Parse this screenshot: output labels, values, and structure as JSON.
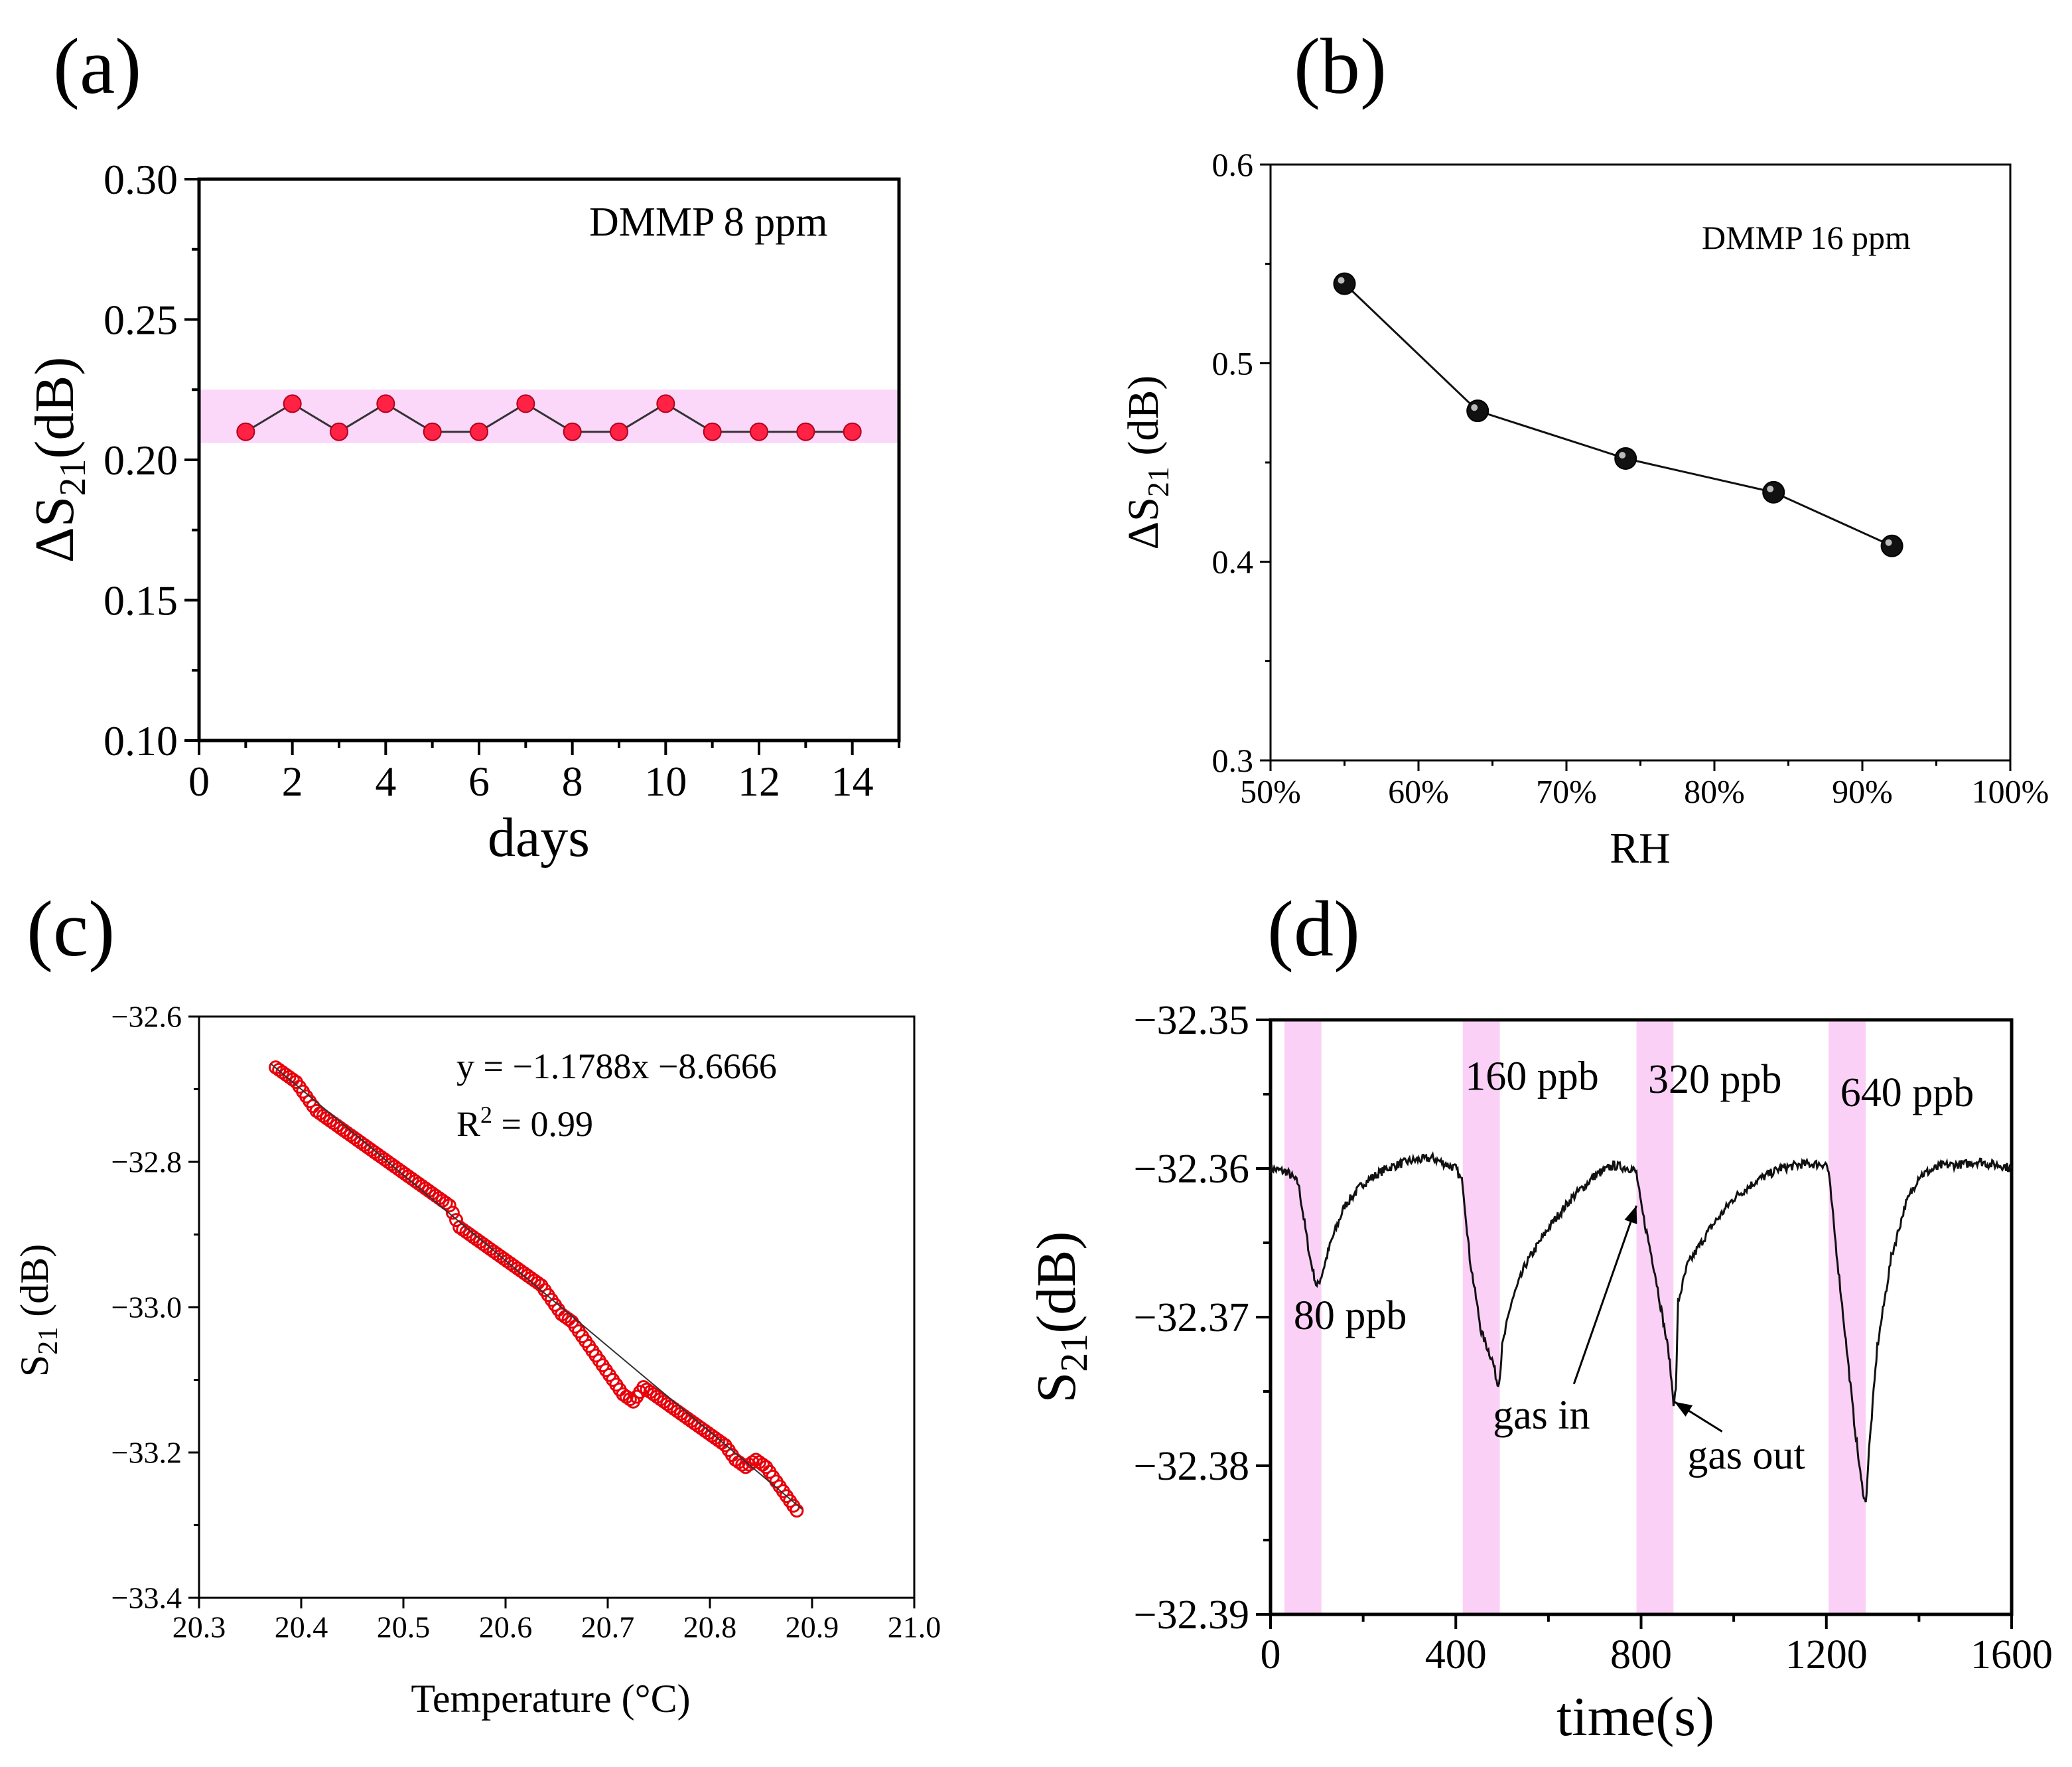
{
  "colors": {
    "panel_a_band": "#fbd7fa",
    "panel_a_marker": "#ff2244",
    "panel_b_marker": "#111111",
    "panel_c_marker": "#e8000b",
    "panel_d_band": "#fbd0f7",
    "panel_d_line": "#111111"
  },
  "chart_data": [
    {
      "panel": "(a)",
      "type": "line",
      "xlabel": "days",
      "ylabel_main": "ΔS",
      "ylabel_sub": "21",
      "ylabel_tail": "(dB)",
      "annotation": "DMMP 8 ppm",
      "xlim": [
        0,
        15
      ],
      "ylim": [
        0.1,
        0.3
      ],
      "x_ticks": [
        0,
        2,
        4,
        6,
        8,
        10,
        12,
        14
      ],
      "x_tick_labels": [
        "0",
        "2",
        "4",
        "6",
        "8",
        "10",
        "12",
        "14"
      ],
      "y_ticks": [
        0.1,
        0.15,
        0.2,
        0.25,
        0.3
      ],
      "y_tick_labels": [
        "0.10",
        "0.15",
        "0.20",
        "0.25",
        "0.30"
      ],
      "band_y": [
        0.206,
        0.225
      ],
      "x": [
        1,
        2,
        3,
        4,
        5,
        6,
        7,
        8,
        9,
        10,
        11,
        12,
        13,
        14
      ],
      "y": [
        0.21,
        0.22,
        0.21,
        0.22,
        0.21,
        0.21,
        0.22,
        0.21,
        0.21,
        0.22,
        0.21,
        0.21,
        0.21,
        0.21
      ]
    },
    {
      "panel": "(b)",
      "type": "line",
      "xlabel": "RH",
      "ylabel_main": "ΔS",
      "ylabel_sub": "21",
      "ylabel_tail": " (dB)",
      "annotation": "DMMP 16 ppm",
      "xlim": [
        50,
        100
      ],
      "ylim": [
        0.3,
        0.6
      ],
      "x_ticks": [
        50,
        60,
        70,
        80,
        90,
        100
      ],
      "x_tick_labels": [
        "50%",
        "60%",
        "70%",
        "80%",
        "90%",
        "100%"
      ],
      "y_ticks": [
        0.3,
        0.4,
        0.5,
        0.6
      ],
      "y_tick_labels": [
        "0.3",
        "0.4",
        "0.5",
        "0.6"
      ],
      "x": [
        55,
        64,
        74,
        84,
        92
      ],
      "y": [
        0.54,
        0.476,
        0.452,
        0.435,
        0.408
      ]
    },
    {
      "panel": "(c)",
      "type": "scatter",
      "xlabel": "Temperature (°C)",
      "ylabel_main": "S",
      "ylabel_sub": "21",
      "ylabel_tail": " (dB)",
      "equation": "y = −1.1788x −8.6666",
      "r2_prefix": "R",
      "r2_sup": "2",
      "r2_suffix": " = 0.99",
      "xlim": [
        20.3,
        21.0
      ],
      "ylim": [
        -33.4,
        -32.6
      ],
      "x_ticks": [
        20.3,
        20.4,
        20.5,
        20.6,
        20.7,
        20.8,
        20.9,
        21.0
      ],
      "x_tick_labels": [
        "20.3",
        "20.4",
        "20.5",
        "20.6",
        "20.7",
        "20.8",
        "20.9",
        "21.0"
      ],
      "y_ticks": [
        -33.4,
        -33.2,
        -33.0,
        -32.8,
        -32.6
      ],
      "y_tick_labels": [
        "−33.4",
        "−33.2",
        "−33.0",
        "−32.8",
        "−32.6"
      ],
      "fit_x": [
        20.37,
        20.89
      ],
      "fit_y": [
        -32.6647,
        -33.2777
      ],
      "x": [
        20.375,
        20.385,
        20.395,
        20.405,
        20.415,
        20.425,
        20.435,
        20.445,
        20.455,
        20.465,
        20.475,
        20.485,
        20.495,
        20.505,
        20.515,
        20.525,
        20.535,
        20.545,
        20.555,
        20.565,
        20.575,
        20.585,
        20.595,
        20.605,
        20.615,
        20.625,
        20.635,
        20.645,
        20.655,
        20.665,
        20.675,
        20.685,
        20.695,
        20.705,
        20.715,
        20.725,
        20.735,
        20.745,
        20.755,
        20.765,
        20.775,
        20.785,
        20.795,
        20.805,
        20.815,
        20.825,
        20.835,
        20.845,
        20.855,
        20.865,
        20.875,
        20.885
      ],
      "y": [
        -32.67,
        -32.68,
        -32.69,
        -32.71,
        -32.73,
        -32.74,
        -32.75,
        -32.76,
        -32.77,
        -32.78,
        -32.79,
        -32.8,
        -32.81,
        -32.82,
        -32.83,
        -32.84,
        -32.85,
        -32.86,
        -32.89,
        -32.9,
        -32.91,
        -32.92,
        -32.93,
        -32.94,
        -32.95,
        -32.96,
        -32.97,
        -32.99,
        -33.01,
        -33.02,
        -33.04,
        -33.06,
        -33.08,
        -33.1,
        -33.12,
        -33.13,
        -33.11,
        -33.12,
        -33.13,
        -33.14,
        -33.15,
        -33.16,
        -33.17,
        -33.18,
        -33.19,
        -33.21,
        -33.22,
        -33.21,
        -33.22,
        -33.24,
        -33.26,
        -33.28
      ]
    },
    {
      "panel": "(d)",
      "type": "line",
      "xlabel": "time(s)",
      "ylabel_main": "S",
      "ylabel_sub": "21",
      "ylabel_tail": "(dB)",
      "xlim": [
        0,
        1600
      ],
      "ylim": [
        -32.39,
        -32.35
      ],
      "x_ticks": [
        0,
        400,
        800,
        1200,
        1600
      ],
      "x_tick_labels": [
        "0",
        "400",
        "800",
        "1200",
        "1600"
      ],
      "y_ticks": [
        -32.39,
        -32.38,
        -32.37,
        -32.36,
        -32.35
      ],
      "y_tick_labels": [
        "−32.39",
        "−32.38",
        "−32.37",
        "−32.36",
        "−32.35"
      ],
      "bands": [
        [
          30,
          110
        ],
        [
          415,
          495
        ],
        [
          790,
          870
        ],
        [
          1205,
          1285
        ]
      ],
      "concentration_labels": [
        {
          "text": "80 ppb",
          "x": 50,
          "y": -32.3708
        },
        {
          "text": "160 ppb",
          "x": 420,
          "y": -32.3547
        },
        {
          "text": "320 ppb",
          "x": 815,
          "y": -32.3549
        },
        {
          "text": "640 ppb",
          "x": 1230,
          "y": -32.3558
        }
      ],
      "arrows": [
        {
          "text": "gas in",
          "text_x": 480,
          "text_y": -32.3775,
          "tip_x": 790,
          "tip_y": -32.3625,
          "tail_x": 655,
          "tail_y": -32.3745
        },
        {
          "text": "gas out",
          "text_x": 900,
          "text_y": -32.3802,
          "tip_x": 872,
          "tip_y": -32.3757,
          "tail_x": 975,
          "tail_y": -32.3777
        }
      ],
      "x": [
        0,
        30,
        35,
        60,
        85,
        100,
        110,
        130,
        160,
        200,
        250,
        300,
        350,
        400,
        415,
        430,
        455,
        480,
        490,
        495,
        500,
        520,
        550,
        600,
        650,
        700,
        740,
        780,
        790,
        800,
        830,
        860,
        870,
        875,
        880,
        900,
        950,
        1000,
        1050,
        1100,
        1150,
        1200,
        1205,
        1220,
        1240,
        1260,
        1275,
        1285,
        1292,
        1310,
        1340,
        1370,
        1400,
        1450,
        1500,
        1530,
        1550,
        1580,
        1600
      ],
      "y": [
        -32.36,
        -32.3602,
        -32.3602,
        -32.361,
        -32.366,
        -32.368,
        -32.3672,
        -32.365,
        -32.3625,
        -32.361,
        -32.36,
        -32.3595,
        -32.3593,
        -32.36,
        -32.361,
        -32.366,
        -32.371,
        -32.373,
        -32.3745,
        -32.374,
        -32.372,
        -32.369,
        -32.3665,
        -32.364,
        -32.362,
        -32.3605,
        -32.3598,
        -32.36,
        -32.3603,
        -32.3625,
        -32.367,
        -32.3725,
        -32.3757,
        -32.375,
        -32.369,
        -32.3665,
        -32.364,
        -32.362,
        -32.3608,
        -32.36,
        -32.3597,
        -32.3597,
        -32.3603,
        -32.365,
        -32.371,
        -32.377,
        -32.381,
        -32.3826,
        -32.379,
        -32.372,
        -32.366,
        -32.3625,
        -32.3605,
        -32.3598,
        -32.3597,
        -32.3595,
        -32.3597,
        -32.3598,
        -32.36
      ]
    }
  ]
}
